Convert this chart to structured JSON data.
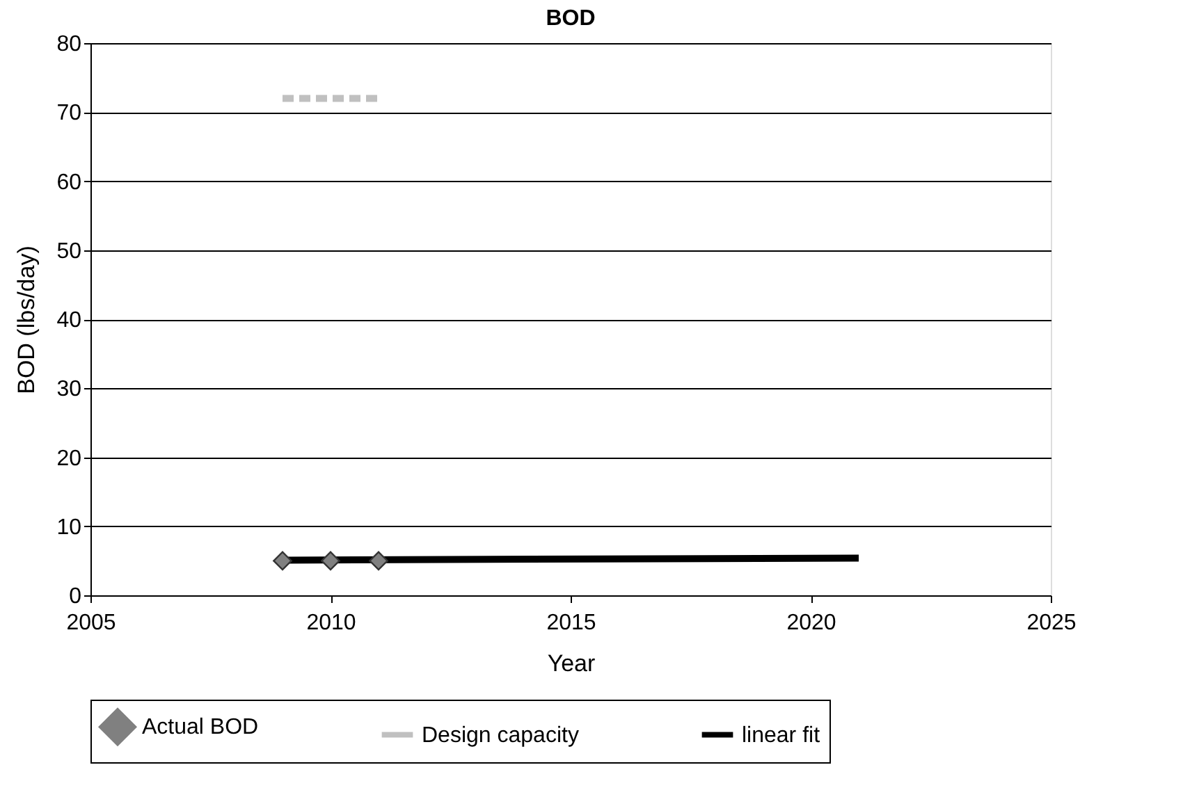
{
  "chart_data": {
    "type": "scatter",
    "title": "BOD",
    "xlabel": "Year",
    "ylabel": "BOD (lbs/day)",
    "series": [
      {
        "name": "Actual BOD",
        "marker": "diamond",
        "color": "#808080",
        "x": [
          2009,
          2010,
          2011
        ],
        "values": [
          5.0,
          5.0,
          5.0
        ]
      },
      {
        "name": "Design capacity",
        "type": "line",
        "line_style": "dashed",
        "marker": "none",
        "color": "#c0c0c0",
        "x": [
          2009,
          2011
        ],
        "values": [
          72,
          72
        ]
      },
      {
        "name": "linear fit",
        "type": "line",
        "line_style": "solid",
        "marker": "none",
        "color": "#000000",
        "x": [
          2009,
          2021
        ],
        "values": [
          5.1,
          5.4
        ]
      }
    ],
    "xlim": [
      2005,
      2025
    ],
    "xticks": [
      2005,
      2010,
      2015,
      2020,
      2025
    ],
    "ylim": [
      0,
      80
    ],
    "yticks": [
      0,
      10,
      20,
      30,
      40,
      50,
      60,
      70,
      80
    ],
    "grid": "y",
    "legend": "bottom"
  }
}
